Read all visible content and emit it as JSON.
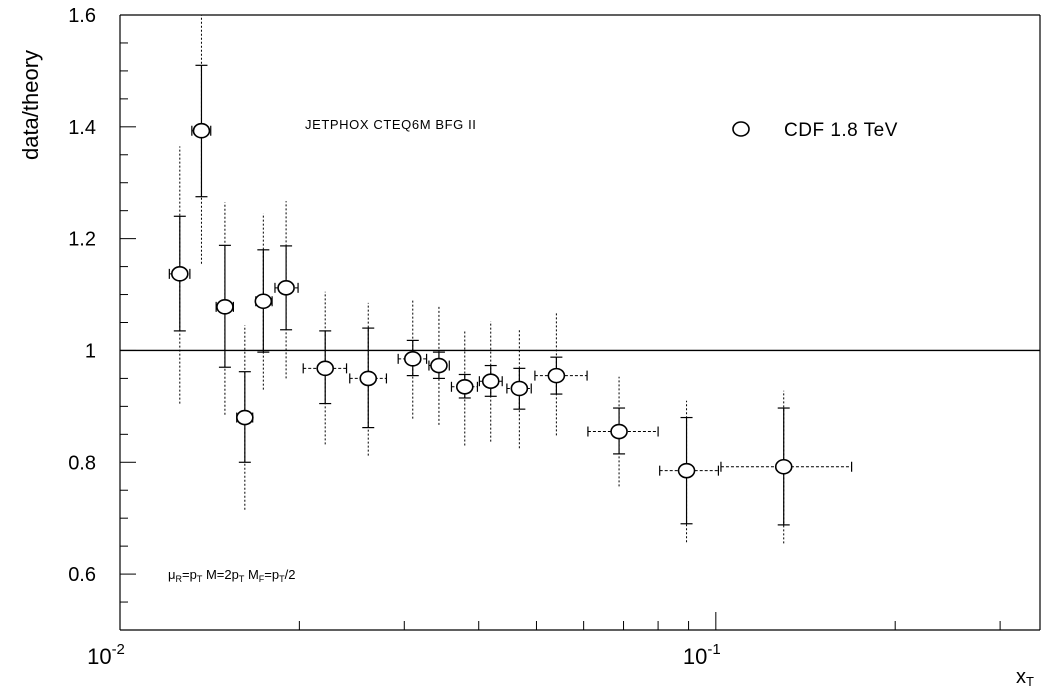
{
  "chart_data": {
    "type": "scatter",
    "x_scale": "log",
    "xlim": [
      0.01,
      0.35
    ],
    "ylim": [
      0.5,
      1.6
    ],
    "xlabel": "x",
    "xlabel_sub": "T",
    "ylabel": "data/theory",
    "y_ticks": [
      0.6,
      0.8,
      1,
      1.2,
      1.4,
      1.6
    ],
    "y_tick_labels": [
      "0.6",
      "0.8",
      "1",
      "1.2",
      "1.4",
      "1.6"
    ],
    "x_major_ticks": [
      {
        "value": 0.01,
        "base": "10",
        "exp": "-2"
      },
      {
        "value": 0.1,
        "base": "10",
        "exp": "-1"
      }
    ],
    "reference_line": 1.0,
    "annotations": {
      "model": "JETPHOX CTEQ6M BFG II",
      "scales": {
        "mu": "μ",
        "mu_sub": "R",
        "eq1": "=p",
        "p1_sub": "T",
        "m_part": " M=2p",
        "p2_sub": "T",
        "mf_part": " M",
        "mf_sub": "F",
        "eq3": "=p",
        "p3_sub": "T",
        "tail": "/2"
      }
    },
    "legend": {
      "position": "top-right",
      "label": "CDF 1.8 TeV",
      "marker": "open-circle"
    },
    "series": [
      {
        "name": "CDF 1.8 TeV",
        "points": [
          {
            "x": 0.0126,
            "y": 1.137,
            "x_lo": 0.0121,
            "x_hi": 0.0131,
            "stat_lo": 1.035,
            "stat_hi": 1.24,
            "sys_lo": 0.905,
            "sys_hi": 1.365
          },
          {
            "x": 0.0137,
            "y": 1.393,
            "x_lo": 0.0132,
            "x_hi": 0.0142,
            "stat_lo": 1.275,
            "stat_hi": 1.51,
            "sys_lo": 1.155,
            "sys_hi": 1.6
          },
          {
            "x": 0.015,
            "y": 1.078,
            "x_lo": 0.0145,
            "x_hi": 0.0155,
            "stat_lo": 0.97,
            "stat_hi": 1.188,
            "sys_lo": 0.885,
            "sys_hi": 1.265
          },
          {
            "x": 0.0162,
            "y": 0.88,
            "x_lo": 0.0157,
            "x_hi": 0.0167,
            "stat_lo": 0.8,
            "stat_hi": 0.962,
            "sys_lo": 0.715,
            "sys_hi": 1.045
          },
          {
            "x": 0.0174,
            "y": 1.088,
            "x_lo": 0.0169,
            "x_hi": 0.018,
            "stat_lo": 0.997,
            "stat_hi": 1.18,
            "sys_lo": 0.93,
            "sys_hi": 1.245
          },
          {
            "x": 0.019,
            "y": 1.112,
            "x_lo": 0.0182,
            "x_hi": 0.0199,
            "stat_lo": 1.037,
            "stat_hi": 1.187,
            "sys_lo": 0.95,
            "sys_hi": 1.267
          },
          {
            "x": 0.0221,
            "y": 0.968,
            "x_lo": 0.0203,
            "x_hi": 0.024,
            "stat_lo": 0.905,
            "stat_hi": 1.035,
            "sys_lo": 0.832,
            "sys_hi": 1.105
          },
          {
            "x": 0.0261,
            "y": 0.95,
            "x_lo": 0.0243,
            "x_hi": 0.028,
            "stat_lo": 0.862,
            "stat_hi": 1.04,
            "sys_lo": 0.812,
            "sys_hi": 1.085
          },
          {
            "x": 0.031,
            "y": 0.985,
            "x_lo": 0.0293,
            "x_hi": 0.0327,
            "stat_lo": 0.955,
            "stat_hi": 1.018,
            "sys_lo": 0.878,
            "sys_hi": 1.092
          },
          {
            "x": 0.0343,
            "y": 0.973,
            "x_lo": 0.033,
            "x_hi": 0.0357,
            "stat_lo": 0.95,
            "stat_hi": 0.997,
            "sys_lo": 0.867,
            "sys_hi": 1.078
          },
          {
            "x": 0.0379,
            "y": 0.935,
            "x_lo": 0.036,
            "x_hi": 0.0398,
            "stat_lo": 0.915,
            "stat_hi": 0.957,
            "sys_lo": 0.83,
            "sys_hi": 1.035
          },
          {
            "x": 0.0419,
            "y": 0.945,
            "x_lo": 0.0401,
            "x_hi": 0.0438,
            "stat_lo": 0.918,
            "stat_hi": 0.973,
            "sys_lo": 0.837,
            "sys_hi": 1.052
          },
          {
            "x": 0.0468,
            "y": 0.932,
            "x_lo": 0.0446,
            "x_hi": 0.049,
            "stat_lo": 0.895,
            "stat_hi": 0.968,
            "sys_lo": 0.825,
            "sys_hi": 1.038
          },
          {
            "x": 0.054,
            "y": 0.955,
            "x_lo": 0.0497,
            "x_hi": 0.0608,
            "stat_lo": 0.922,
            "stat_hi": 0.988,
            "sys_lo": 0.848,
            "sys_hi": 1.068
          },
          {
            "x": 0.0688,
            "y": 0.855,
            "x_lo": 0.061,
            "x_hi": 0.08,
            "stat_lo": 0.815,
            "stat_hi": 0.897,
            "sys_lo": 0.757,
            "sys_hi": 0.953
          },
          {
            "x": 0.0893,
            "y": 0.785,
            "x_lo": 0.0805,
            "x_hi": 0.101,
            "stat_lo": 0.69,
            "stat_hi": 0.88,
            "sys_lo": 0.657,
            "sys_hi": 0.91
          },
          {
            "x": 0.13,
            "y": 0.792,
            "x_lo": 0.102,
            "x_hi": 0.169,
            "stat_lo": 0.688,
            "stat_hi": 0.897,
            "sys_lo": 0.655,
            "sys_hi": 0.928
          }
        ]
      }
    ]
  }
}
